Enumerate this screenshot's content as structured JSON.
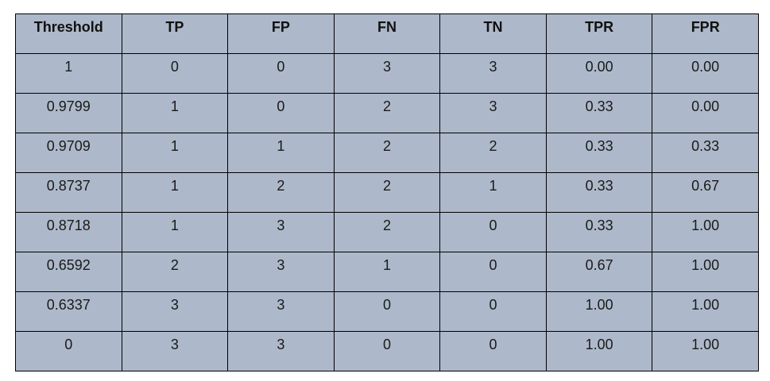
{
  "table": {
    "headers": [
      "Threshold",
      "TP",
      "FP",
      "FN",
      "TN",
      "TPR",
      "FPR"
    ],
    "rows": [
      [
        "1",
        "0",
        "0",
        "3",
        "3",
        "0.00",
        "0.00"
      ],
      [
        "0.9799",
        "1",
        "0",
        "2",
        "3",
        "0.33",
        "0.00"
      ],
      [
        "0.9709",
        "1",
        "1",
        "2",
        "2",
        "0.33",
        "0.33"
      ],
      [
        "0.8737",
        "1",
        "2",
        "2",
        "1",
        "0.33",
        "0.67"
      ],
      [
        "0.8718",
        "1",
        "3",
        "2",
        "0",
        "0.33",
        "1.00"
      ],
      [
        "0.6592",
        "2",
        "3",
        "1",
        "0",
        "0.67",
        "1.00"
      ],
      [
        "0.6337",
        "3",
        "3",
        "0",
        "0",
        "1.00",
        "1.00"
      ],
      [
        "0",
        "3",
        "3",
        "0",
        "0",
        "1.00",
        "1.00"
      ]
    ],
    "cell_color": "#adb9ca"
  }
}
